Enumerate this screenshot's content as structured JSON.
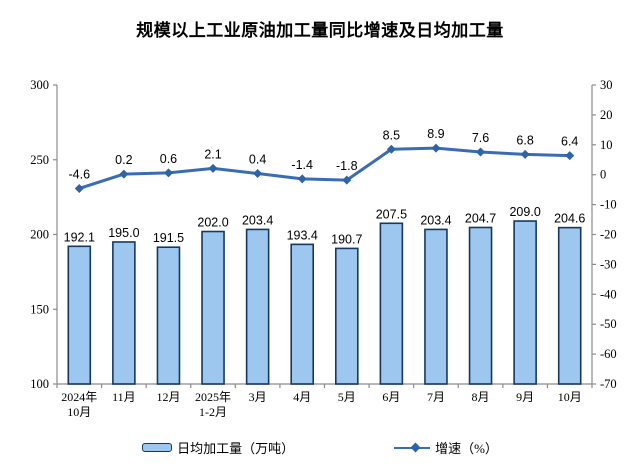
{
  "title": "规模以上工业原油加工量同比增速及日均加工量",
  "chart_data": {
    "type": "combo-bar-line",
    "categories": [
      "2024年\n10月",
      "11月",
      "12月",
      "2025年\n1-2月",
      "3月",
      "4月",
      "5月",
      "6月",
      "7月",
      "8月",
      "9月",
      "10月"
    ],
    "series": [
      {
        "name": "日均加工量（万吨）",
        "type": "bar",
        "axis": "left",
        "values": [
          192.1,
          195.0,
          191.5,
          202.0,
          203.4,
          193.4,
          190.7,
          207.5,
          203.4,
          204.7,
          209.0,
          204.6
        ],
        "fill": "#9DC7EE",
        "stroke": "#17375E"
      },
      {
        "name": "增速（%）",
        "type": "line",
        "axis": "right",
        "values": [
          -4.6,
          0.2,
          0.6,
          2.1,
          0.4,
          -1.4,
          -1.8,
          8.5,
          8.9,
          7.6,
          6.8,
          6.4
        ],
        "color": "#3A6CB4",
        "marker_color": "#2E64A6"
      }
    ],
    "left_axis": {
      "min": 100,
      "max": 300,
      "step": 50
    },
    "right_axis": {
      "min": -70,
      "max": 30,
      "step": 10
    },
    "grid": false,
    "legend_position": "bottom",
    "axis_color": "#8C8C8C"
  },
  "legend": {
    "bar_label": "日均加工量（万吨）",
    "line_label": "增速（%）"
  }
}
